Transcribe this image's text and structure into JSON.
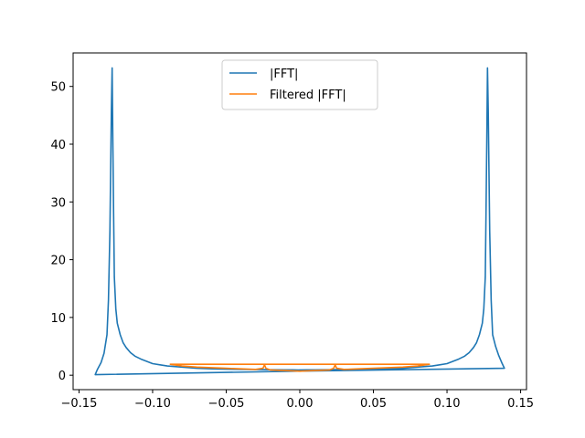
{
  "chart_data": {
    "type": "line",
    "title": "",
    "xlabel": "",
    "ylabel": "",
    "xlim": [
      -0.154,
      0.154
    ],
    "ylim": [
      -2.5,
      55.8
    ],
    "x_ticks": [
      -0.15,
      -0.1,
      -0.05,
      0.0,
      0.05,
      0.1,
      0.15
    ],
    "x_tick_labels": [
      "−0.15",
      "−0.10",
      "−0.05",
      "0.00",
      "0.05",
      "0.10",
      "0.15"
    ],
    "y_ticks": [
      0,
      10,
      20,
      30,
      40,
      50
    ],
    "y_tick_labels": [
      "0",
      "10",
      "20",
      "30",
      "40",
      "50"
    ],
    "grid": false,
    "legend_position": "top-center",
    "series": [
      {
        "name": "|FFT|",
        "color": "#1f77b4",
        "x": [
          0.0,
          0.005,
          0.01,
          0.02,
          0.03,
          0.04,
          0.05,
          0.06,
          0.07,
          0.075,
          0.08,
          0.085,
          0.09,
          0.095,
          0.1,
          0.104,
          0.108,
          0.112,
          0.115,
          0.118,
          0.12,
          0.122,
          0.124,
          0.125,
          0.126,
          0.1265,
          0.127,
          0.1275,
          0.128,
          0.129,
          0.13,
          0.131,
          0.133,
          0.135,
          0.1375,
          0.139,
          0.0,
          -0.139,
          -0.1375,
          -0.135,
          -0.133,
          -0.131,
          -0.13,
          -0.129,
          -0.128,
          -0.1275,
          -0.127,
          -0.1265,
          -0.126,
          -0.125,
          -0.124,
          -0.122,
          -0.12,
          -0.118,
          -0.115,
          -0.112,
          -0.108,
          -0.104,
          -0.1,
          -0.095,
          -0.09,
          -0.085,
          -0.08,
          -0.075,
          -0.07,
          -0.06,
          -0.05,
          -0.04,
          -0.03,
          -0.02,
          -0.01,
          -0.005,
          0.0
        ],
        "y": [
          0.9,
          0.92,
          0.92,
          0.95,
          0.98,
          1.0,
          1.05,
          1.1,
          1.2,
          1.3,
          1.4,
          1.5,
          1.6,
          1.8,
          2.0,
          2.4,
          2.8,
          3.3,
          3.9,
          4.8,
          5.6,
          7.0,
          9.0,
          11.5,
          17.0,
          28.0,
          40.0,
          53.2,
          46.0,
          25.0,
          13.0,
          7.0,
          5.0,
          3.5,
          2.0,
          1.2,
          0.7,
          0.1,
          1.0,
          2.2,
          3.8,
          7.0,
          13.0,
          25.0,
          46.0,
          53.2,
          40.0,
          28.0,
          17.0,
          11.5,
          9.0,
          7.0,
          5.6,
          4.8,
          3.9,
          3.3,
          2.8,
          2.4,
          2.0,
          1.8,
          1.6,
          1.5,
          1.4,
          1.3,
          1.2,
          1.1,
          1.05,
          1.0,
          0.98,
          0.95,
          0.92,
          0.92,
          0.9
        ]
      },
      {
        "name": "Filtered |FFT|",
        "color": "#ff7f0e",
        "x": [
          0.0,
          0.01,
          0.02,
          0.023,
          0.024,
          0.025,
          0.03,
          0.04,
          0.05,
          0.06,
          0.07,
          0.08,
          0.088,
          -0.088,
          -0.08,
          -0.07,
          -0.06,
          -0.05,
          -0.04,
          -0.03,
          -0.025,
          -0.024,
          -0.023,
          -0.02,
          -0.01,
          0.0
        ],
        "y": [
          0.7,
          0.8,
          0.9,
          1.2,
          1.8,
          1.2,
          1.0,
          1.1,
          1.2,
          1.3,
          1.4,
          1.6,
          1.9,
          1.9,
          1.6,
          1.4,
          1.3,
          1.2,
          1.1,
          1.0,
          1.2,
          1.8,
          1.2,
          0.9,
          0.8,
          0.7
        ]
      }
    ]
  }
}
